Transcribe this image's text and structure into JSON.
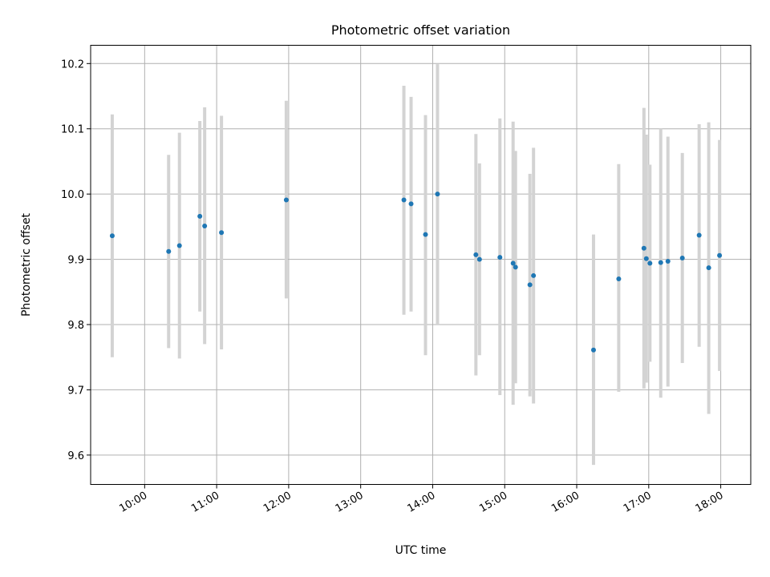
{
  "chart_data": {
    "type": "scatter",
    "title": "Photometric offset variation",
    "xlabel": "UTC time",
    "ylabel": "Photometric offset",
    "x_unit": "UTC hours",
    "xlim": [
      "09:15",
      "18:25"
    ],
    "ylim": [
      9.555,
      10.228
    ],
    "x_ticks": [
      "10:00",
      "11:00",
      "12:00",
      "13:00",
      "14:00",
      "15:00",
      "16:00",
      "17:00",
      "18:00"
    ],
    "y_ticks": [
      "9.6",
      "9.7",
      "9.8",
      "9.9",
      "10.0",
      "10.1",
      "10.2"
    ],
    "grid": true,
    "colors": {
      "points": "#1f77b4",
      "error_bars": "#d3d3d3",
      "grid": "#b0b0b0"
    },
    "points": [
      {
        "x": "09:33",
        "y": 9.936,
        "yerr_low": 9.75,
        "yerr_high": 10.122
      },
      {
        "x": "10:20",
        "y": 9.912,
        "yerr_low": 9.764,
        "yerr_high": 10.06
      },
      {
        "x": "10:29",
        "y": 9.921,
        "yerr_low": 9.748,
        "yerr_high": 10.094
      },
      {
        "x": "10:46",
        "y": 9.966,
        "yerr_low": 9.82,
        "yerr_high": 10.112
      },
      {
        "x": "10:50",
        "y": 9.951,
        "yerr_low": 9.77,
        "yerr_high": 10.133
      },
      {
        "x": "11:04",
        "y": 9.941,
        "yerr_low": 9.762,
        "yerr_high": 10.12
      },
      {
        "x": "11:58",
        "y": 9.991,
        "yerr_low": 9.84,
        "yerr_high": 10.143
      },
      {
        "x": "13:36",
        "y": 9.991,
        "yerr_low": 9.815,
        "yerr_high": 10.166
      },
      {
        "x": "13:42",
        "y": 9.985,
        "yerr_low": 9.82,
        "yerr_high": 10.149
      },
      {
        "x": "13:54",
        "y": 9.938,
        "yerr_low": 9.753,
        "yerr_high": 10.121
      },
      {
        "x": "14:04",
        "y": 10.0,
        "yerr_low": 9.8,
        "yerr_high": 10.199
      },
      {
        "x": "14:36",
        "y": 9.907,
        "yerr_low": 9.722,
        "yerr_high": 10.092
      },
      {
        "x": "14:39",
        "y": 9.9,
        "yerr_low": 9.753,
        "yerr_high": 10.047
      },
      {
        "x": "14:56",
        "y": 9.903,
        "yerr_low": 9.692,
        "yerr_high": 10.116
      },
      {
        "x": "15:07",
        "y": 9.894,
        "yerr_low": 9.677,
        "yerr_high": 10.111
      },
      {
        "x": "15:09",
        "y": 9.888,
        "yerr_low": 9.71,
        "yerr_high": 10.066
      },
      {
        "x": "15:21",
        "y": 9.861,
        "yerr_low": 9.69,
        "yerr_high": 10.031
      },
      {
        "x": "15:24",
        "y": 9.875,
        "yerr_low": 9.679,
        "yerr_high": 10.071
      },
      {
        "x": "16:14",
        "y": 9.761,
        "yerr_low": 9.585,
        "yerr_high": 9.938
      },
      {
        "x": "16:35",
        "y": 9.87,
        "yerr_low": 9.697,
        "yerr_high": 10.046
      },
      {
        "x": "16:56",
        "y": 9.917,
        "yerr_low": 9.702,
        "yerr_high": 10.132
      },
      {
        "x": "16:58",
        "y": 9.901,
        "yerr_low": 9.711,
        "yerr_high": 10.091
      },
      {
        "x": "17:01",
        "y": 9.894,
        "yerr_low": 9.743,
        "yerr_high": 10.045
      },
      {
        "x": "17:10",
        "y": 9.895,
        "yerr_low": 9.688,
        "yerr_high": 10.1
      },
      {
        "x": "17:16",
        "y": 9.897,
        "yerr_low": 9.705,
        "yerr_high": 10.088
      },
      {
        "x": "17:28",
        "y": 9.902,
        "yerr_low": 9.741,
        "yerr_high": 10.063
      },
      {
        "x": "17:42",
        "y": 9.937,
        "yerr_low": 9.766,
        "yerr_high": 10.107
      },
      {
        "x": "17:50",
        "y": 9.887,
        "yerr_low": 9.663,
        "yerr_high": 10.11
      },
      {
        "x": "17:59",
        "y": 9.906,
        "yerr_low": 9.729,
        "yerr_high": 10.083
      }
    ]
  }
}
